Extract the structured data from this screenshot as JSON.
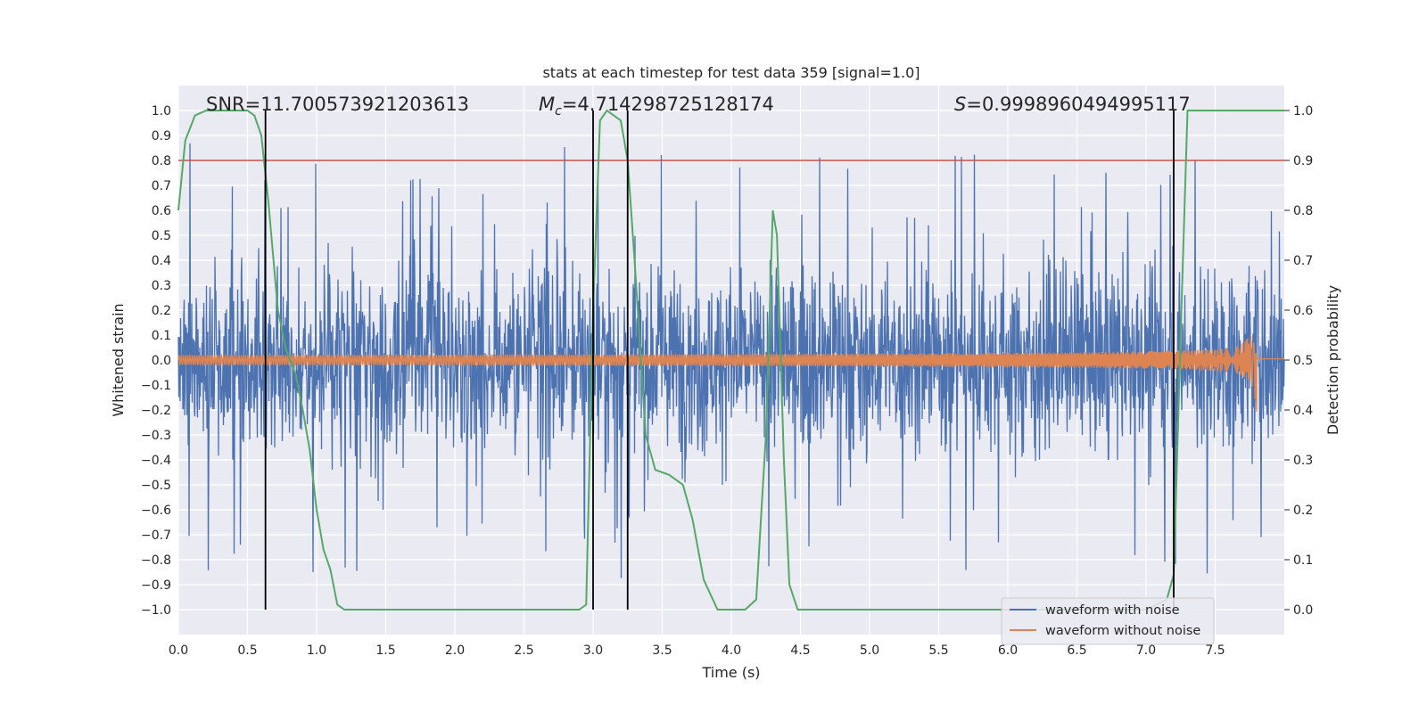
{
  "chart_data": {
    "type": "line",
    "title": "stats at each timestep for test data 359 [signal=1.0]",
    "xlabel": "Time (s)",
    "ylabel": "Whitened strain",
    "ylabel_right": "Detection probability",
    "xlim": [
      0.0,
      8.0
    ],
    "ylim": [
      -1.1,
      1.1
    ],
    "ylim_right": [
      -0.05,
      1.05
    ],
    "x_ticks": [
      "0.0",
      "0.5",
      "1.0",
      "1.5",
      "2.0",
      "2.5",
      "3.0",
      "3.5",
      "4.0",
      "4.5",
      "5.0",
      "5.5",
      "6.0",
      "6.5",
      "7.0",
      "7.5"
    ],
    "y_ticks": [
      "−1.0",
      "−0.9",
      "−0.8",
      "−0.7",
      "−0.6",
      "−0.5",
      "−0.4",
      "−0.3",
      "−0.2",
      "−0.1",
      "0.0",
      "0.1",
      "0.2",
      "0.3",
      "0.4",
      "0.5",
      "0.6",
      "0.7",
      "0.8",
      "0.9",
      "1.0"
    ],
    "y_right_ticks": [
      "0.0",
      "0.1",
      "0.2",
      "0.3",
      "0.4",
      "0.5",
      "0.6",
      "0.7",
      "0.8",
      "0.9",
      "1.0"
    ],
    "grid": true,
    "legend_position": "lower-right",
    "annotations": {
      "snr": "SNR=11.700573921203613",
      "mc_symbol": "M",
      "mc_sub": "c",
      "mc_value": "=4.714298725128174",
      "s_symbol": "S",
      "s_value": "=0.9998960494995117"
    },
    "series": [
      {
        "name": "waveform with noise",
        "axis": "left",
        "color": "#4c72b0",
        "style": "dense noise, typical envelope about ±0.35 with peaks near ±0.9",
        "x_range": [
          0.0,
          8.0
        ]
      },
      {
        "name": "waveform without noise",
        "axis": "left",
        "color": "#dd8452",
        "style": "chirp oscillation, amplitude growing from ~0.02 to ~0.28, merger at 7.8",
        "x_range": [
          0.0,
          7.8
        ],
        "amplitude_start": 0.02,
        "amplitude_peak": 0.28,
        "merger_time": 7.8
      },
      {
        "axis": "right",
        "color": "#55a868",
        "x": [
          0.0,
          0.05,
          0.12,
          0.2,
          0.3,
          0.4,
          0.5,
          0.55,
          0.6,
          0.65,
          0.72,
          0.78,
          0.85,
          0.9,
          0.95,
          1.0,
          1.05,
          1.1,
          1.15,
          1.2,
          1.5,
          2.0,
          2.5,
          2.9,
          2.95,
          3.0,
          3.05,
          3.1,
          3.2,
          3.25,
          3.3,
          3.38,
          3.45,
          3.55,
          3.65,
          3.72,
          3.8,
          3.9,
          4.1,
          4.18,
          4.25,
          4.3,
          4.33,
          4.38,
          4.42,
          4.48,
          4.6,
          5.0,
          6.0,
          7.0,
          7.15,
          7.2,
          7.25,
          7.3,
          7.6,
          8.0
        ],
        "y": [
          0.8,
          0.94,
          0.99,
          1.0,
          1.0,
          1.0,
          1.0,
          0.99,
          0.95,
          0.82,
          0.6,
          0.52,
          0.47,
          0.4,
          0.32,
          0.2,
          0.12,
          0.08,
          0.01,
          0.0,
          0.0,
          0.0,
          0.0,
          0.0,
          0.01,
          0.6,
          0.98,
          1.0,
          0.98,
          0.9,
          0.7,
          0.35,
          0.28,
          0.27,
          0.25,
          0.18,
          0.06,
          0.0,
          0.0,
          0.02,
          0.35,
          0.8,
          0.75,
          0.3,
          0.05,
          0.0,
          0.0,
          0.0,
          0.0,
          0.0,
          0.02,
          0.07,
          0.55,
          1.0,
          1.0,
          1.0
        ]
      }
    ],
    "threshold": {
      "axis": "right",
      "value": 0.9,
      "color": "#c44e52"
    },
    "vlines": [
      0.63,
      3.0,
      3.25,
      7.2
    ],
    "vline_color": "#000000",
    "plot_background": "#eaeaf2"
  }
}
